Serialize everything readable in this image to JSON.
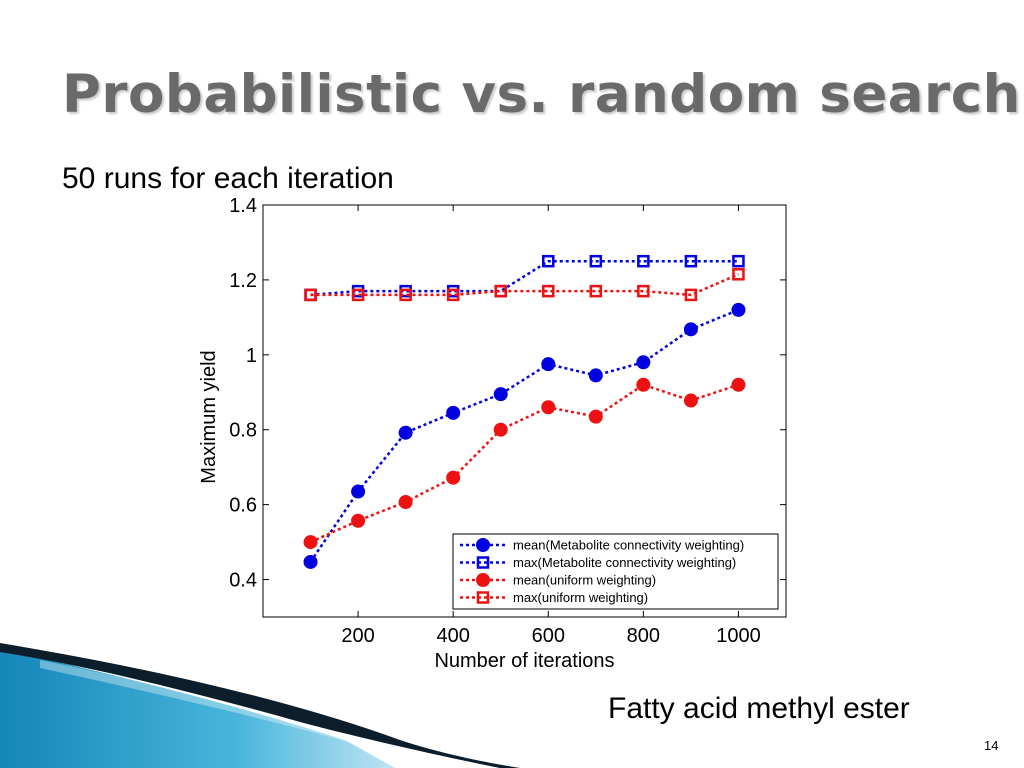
{
  "slide": {
    "title": "Probabilistic vs. random search",
    "subtitle": "50 runs for each iteration",
    "caption": "Fatty acid methyl ester",
    "page_number": "14"
  },
  "colors": {
    "blue": "#0000e0",
    "red": "#ee1111",
    "title": "#6a6a6a",
    "decor_teal": "#1a9dc8"
  },
  "chart_data": {
    "type": "line",
    "xlabel": "Number of iterations",
    "ylabel": "Maximum yield",
    "xlim": [
      0,
      1100
    ],
    "ylim": [
      0.3,
      1.4
    ],
    "x_ticks": [
      200,
      400,
      600,
      800,
      1000
    ],
    "x_tick_labels": [
      "200",
      "400",
      "600",
      "800",
      "1000"
    ],
    "y_ticks": [
      0.4,
      0.6,
      0.8,
      1.0,
      1.2,
      1.4
    ],
    "y_tick_labels": [
      "0.4",
      "0.6",
      "0.8",
      "1",
      "1.2",
      "1.4"
    ],
    "grid": false,
    "legend_position": "bottom-right",
    "x": [
      100,
      200,
      300,
      400,
      500,
      600,
      700,
      800,
      900,
      1000
    ],
    "series": [
      {
        "name": "mean(Metabolite connectivity weighting)",
        "color": "#0000e0",
        "marker": "circle",
        "values": [
          0.447,
          0.635,
          0.792,
          0.845,
          0.895,
          0.975,
          0.945,
          0.98,
          1.068,
          1.12
        ]
      },
      {
        "name": "max(Metabolite connectivity weighting)",
        "color": "#0000e0",
        "marker": "square",
        "values": [
          1.16,
          1.17,
          1.17,
          1.17,
          1.17,
          1.25,
          1.25,
          1.25,
          1.25,
          1.25
        ]
      },
      {
        "name": "mean(uniform weighting)",
        "color": "#ee1111",
        "marker": "circle",
        "values": [
          0.5,
          0.557,
          0.607,
          0.672,
          0.8,
          0.86,
          0.835,
          0.92,
          0.878,
          0.92
        ]
      },
      {
        "name": "max(uniform weighting)",
        "color": "#ee1111",
        "marker": "square",
        "values": [
          1.16,
          1.16,
          1.16,
          1.16,
          1.17,
          1.17,
          1.17,
          1.17,
          1.16,
          1.215
        ]
      }
    ]
  }
}
